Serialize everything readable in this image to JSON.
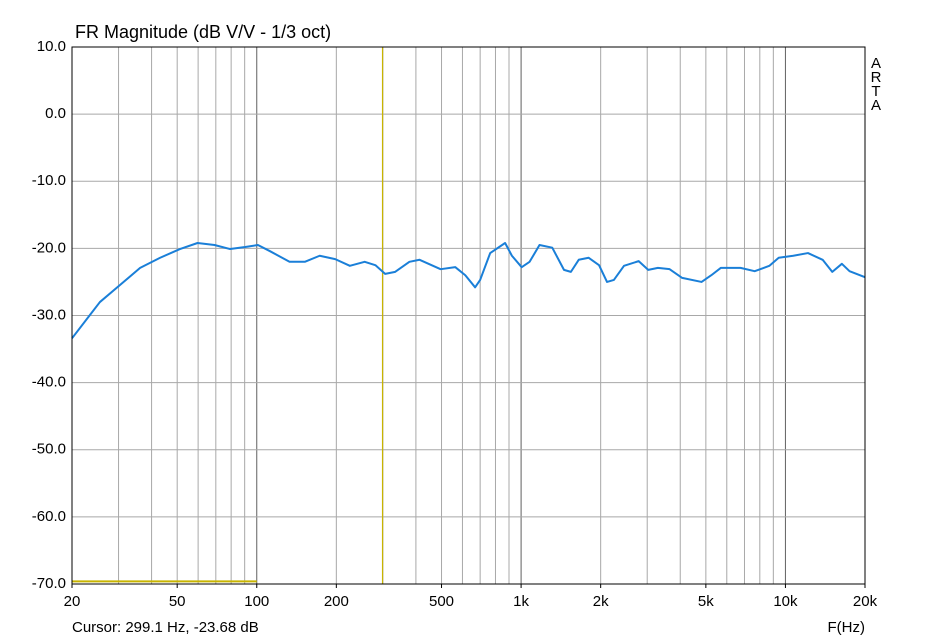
{
  "chart_data": {
    "type": "line",
    "title": "FR Magnitude (dB V/V - 1/3 oct)",
    "x_label": "F(Hz)",
    "watermark": "ARTA",
    "cursor_text": "Cursor: 299.1 Hz, -23.68 dB",
    "cursor": {
      "x": 299.1,
      "color": "#c8b400"
    },
    "band_line": {
      "x": [
        20,
        100
      ],
      "y": -69.6,
      "color": "#c8b400"
    },
    "x_scale": "log",
    "xlim": [
      20,
      20000
    ],
    "ylim": [
      -70,
      10
    ],
    "xticks": [
      20,
      50,
      100,
      200,
      500,
      {
        "value": 1000,
        "label": "1k"
      },
      {
        "value": 2000,
        "label": "2k"
      },
      {
        "value": 5000,
        "label": "5k"
      },
      {
        "value": 10000,
        "label": "10k"
      },
      {
        "value": 20000,
        "label": "20k"
      }
    ],
    "xgrid": [
      30,
      40,
      50,
      60,
      70,
      80,
      90,
      100,
      200,
      300,
      400,
      500,
      600,
      700,
      800,
      900,
      1000,
      2000,
      3000,
      4000,
      5000,
      6000,
      7000,
      8000,
      9000,
      10000
    ],
    "yticks": [
      {
        "value": 10,
        "label": "10.0"
      },
      {
        "value": 0,
        "label": "0.0"
      },
      {
        "value": -10,
        "label": "-10.0"
      },
      {
        "value": -20,
        "label": "-20.0"
      },
      {
        "value": -30,
        "label": "-30.0"
      },
      {
        "value": -40,
        "label": "-40.0"
      },
      {
        "value": -50,
        "label": "-50.0"
      },
      {
        "value": -60,
        "label": "-60.0"
      },
      {
        "value": -70,
        "label": "-70.0"
      }
    ],
    "grid": true,
    "x": [
      20,
      23.4,
      25.5,
      30.3,
      36.2,
      43.1,
      51.2,
      59.7,
      69.2,
      79.3,
      90.4,
      101,
      112,
      133,
      152,
      173,
      198,
      225,
      256,
      281,
      306,
      334,
      378,
      413,
      496,
      564,
      615,
      670,
      700,
      764,
      870,
      923,
      1005,
      1077,
      1174,
      1312,
      1453,
      1543,
      1652,
      1802,
      1972,
      2114,
      2244,
      2451,
      2785,
      3027,
      3292,
      3646,
      4068,
      4816,
      5243,
      5700,
      6764,
      7651,
      8691,
      9432,
      10710,
      12170,
      13830,
      15040,
      16350,
      17480,
      20000
    ],
    "series": [
      {
        "color": "#1a7fd8",
        "values": [
          -33.4,
          -29.9,
          -28.0,
          -25.5,
          -22.9,
          -21.4,
          -20.1,
          -19.2,
          -19.5,
          -20.1,
          -19.8,
          -19.5,
          -20.4,
          -22.0,
          -22.0,
          -21.1,
          -21.6,
          -22.6,
          -22.0,
          -22.5,
          -23.8,
          -23.5,
          -22.0,
          -21.7,
          -23.1,
          -22.8,
          -24.0,
          -25.8,
          -24.7,
          -20.7,
          -19.2,
          -21.1,
          -22.8,
          -22.0,
          -19.5,
          -19.9,
          -23.2,
          -23.5,
          -21.7,
          -21.4,
          -22.5,
          -25.0,
          -24.7,
          -22.6,
          -21.9,
          -23.2,
          -22.9,
          -23.1,
          -24.4,
          -25.0,
          -24.0,
          -22.9,
          -22.9,
          -23.4,
          -22.6,
          -21.4,
          -21.1,
          -20.7,
          -21.7,
          -23.5,
          -22.3,
          -23.4,
          -24.3
        ]
      }
    ]
  }
}
